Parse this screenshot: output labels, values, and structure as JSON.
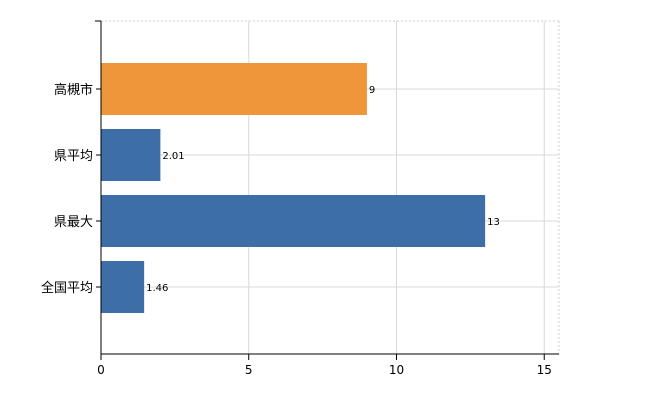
{
  "chart_data": {
    "type": "bar",
    "orientation": "horizontal",
    "categories": [
      "高槻市",
      "県平均",
      "県最大",
      "全国平均"
    ],
    "values": [
      9,
      2.01,
      13,
      1.46
    ],
    "value_labels": [
      "9",
      "2.01",
      "13",
      "1.46"
    ],
    "bar_colors": [
      "#f0963a",
      "#3d6ea8",
      "#3d6ea8",
      "#3d6ea8"
    ],
    "xlim": [
      0,
      15.5
    ],
    "xticks": [
      0,
      5,
      10,
      15
    ],
    "xtick_labels": [
      "0",
      "5",
      "10",
      "15"
    ],
    "grid": true,
    "legend": "none"
  }
}
